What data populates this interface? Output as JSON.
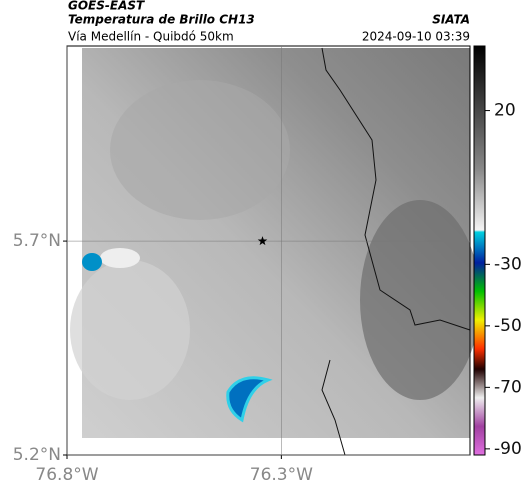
{
  "header": {
    "source": "GOES-EAST",
    "title": "Temperatura de Brillo CH13",
    "org": "SIATA",
    "subtitle": "Vía Medellín - Quibdó 50km",
    "datetime": "2024-09-10 03:39"
  },
  "map": {
    "xlim": [
      -76.8,
      -75.86
    ],
    "ylim": [
      5.2,
      6.156
    ],
    "xticks": [
      {
        "value": -76.8,
        "label": "76.8°W"
      },
      {
        "value": -76.3,
        "label": "76.3°W"
      }
    ],
    "yticks": [
      {
        "value": 5.7,
        "label": "5.7°N"
      },
      {
        "value": 5.2,
        "label": "5.2°N"
      }
    ],
    "grid": true,
    "marker": {
      "lon": -76.344,
      "lat": 5.7
    }
  },
  "colorbar": {
    "lim": [
      -92,
      41
    ],
    "ticks": [
      20,
      -30,
      -50,
      -70,
      -90
    ]
  }
}
